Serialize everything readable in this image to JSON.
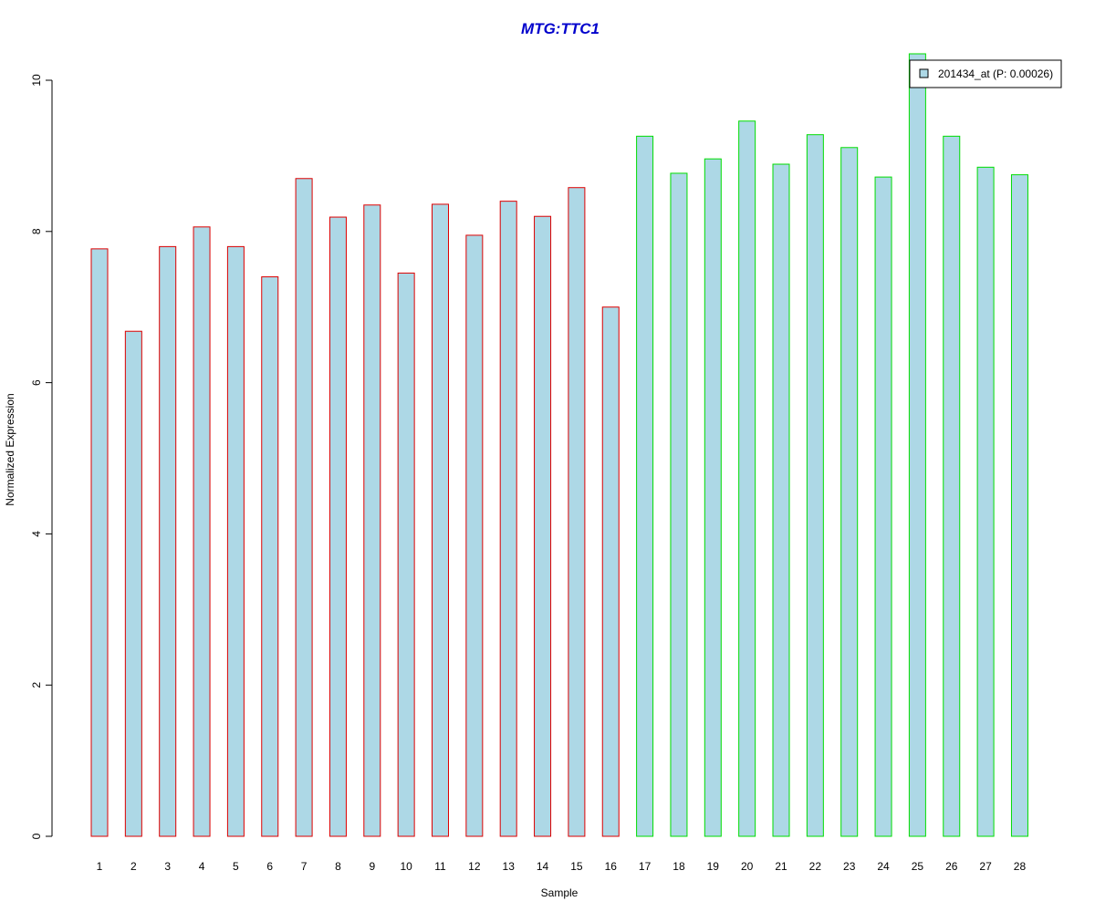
{
  "chart_data": {
    "type": "bar",
    "title": "MTG:TTC1",
    "xlabel": "Sample",
    "ylabel": "Normalized Expression",
    "categories": [
      "1",
      "2",
      "3",
      "4",
      "5",
      "6",
      "7",
      "8",
      "9",
      "10",
      "11",
      "12",
      "13",
      "14",
      "15",
      "16",
      "17",
      "18",
      "19",
      "20",
      "21",
      "22",
      "23",
      "24",
      "25",
      "26",
      "27",
      "28"
    ],
    "series": [
      {
        "name": "201434_at (P: 0.00026)",
        "values": [
          7.77,
          6.68,
          7.8,
          8.06,
          7.8,
          7.4,
          8.7,
          8.19,
          8.35,
          7.45,
          8.36,
          7.95,
          8.4,
          8.2,
          8.58,
          7.0,
          9.26,
          8.77,
          8.96,
          9.46,
          8.89,
          9.28,
          9.11,
          8.72,
          10.35,
          9.26,
          8.85,
          8.75
        ]
      }
    ],
    "groups": [
      {
        "samples": [
          1,
          16
        ],
        "outline_color": "#dd0000"
      },
      {
        "samples": [
          17,
          28
        ],
        "outline_color": "#00dd00"
      }
    ],
    "yticks": [
      0,
      2,
      4,
      6,
      8,
      10
    ],
    "ylim": [
      0,
      10.5
    ],
    "grid": false,
    "legend_position": "top-right",
    "colors": {
      "title": "#0000cc",
      "bar_fill": "#add8e6",
      "axis": "#000000"
    }
  }
}
